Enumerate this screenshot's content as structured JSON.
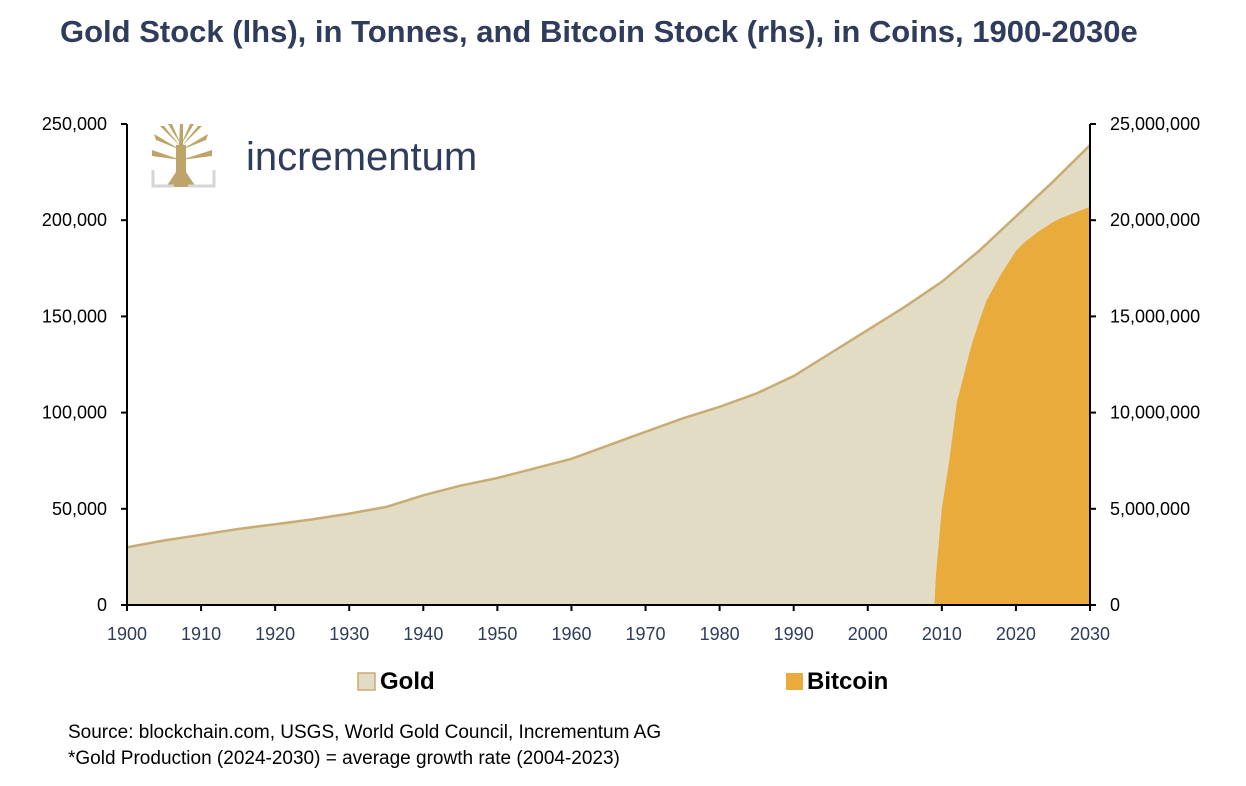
{
  "title": "Gold Stock (lhs), in Tonnes, and Bitcoin Stock (rhs), in Coins, 1900-2030e",
  "logo_text": "incrementum",
  "footer": {
    "source": "Source: blockchain.com, USGS, World Gold Council, Incrementum AG",
    "note": "*Gold Production (2024-2030) = average growth rate (2004-2023)"
  },
  "colors": {
    "gold_fill": "#e3dcc4",
    "gold_line": "#c9ac74",
    "bitcoin": "#e8ab3c",
    "text_dark": "#2f3c5c"
  },
  "chart_data": {
    "type": "area",
    "xlim": [
      1900,
      2030
    ],
    "x_ticks": [
      "1900",
      "1910",
      "1920",
      "1930",
      "1940",
      "1950",
      "1960",
      "1970",
      "1980",
      "1990",
      "2000",
      "2010",
      "2020",
      "2030"
    ],
    "y_left": {
      "ylim": [
        0,
        250000
      ],
      "ticks": [
        "0",
        "50,000",
        "100,000",
        "150,000",
        "200,000",
        "250,000"
      ]
    },
    "y_right": {
      "ylim": [
        0,
        25000000
      ],
      "ticks": [
        "0",
        "5,000,000",
        "10,000,000",
        "15,000,000",
        "20,000,000",
        "25,000,000"
      ]
    },
    "legend": [
      "Gold",
      "Bitcoin"
    ],
    "legend_position": "bottom",
    "series": [
      {
        "name": "Gold",
        "axis": "left",
        "x": [
          1900,
          1905,
          1910,
          1915,
          1920,
          1925,
          1930,
          1935,
          1940,
          1945,
          1950,
          1955,
          1960,
          1965,
          1970,
          1975,
          1980,
          1985,
          1990,
          1995,
          2000,
          2005,
          2010,
          2015,
          2020,
          2025,
          2030
        ],
        "y": [
          30000,
          33500,
          36500,
          39500,
          42000,
          44500,
          47500,
          51000,
          57000,
          62000,
          66000,
          71000,
          76000,
          83000,
          90000,
          97000,
          103000,
          110000,
          119000,
          131000,
          143000,
          155000,
          168000,
          184000,
          202000,
          220000,
          239000
        ]
      },
      {
        "name": "Bitcoin",
        "axis": "right",
        "x": [
          2009,
          2009.2,
          2010,
          2011,
          2012,
          2013,
          2014,
          2015,
          2016,
          2017,
          2018,
          2019,
          2020,
          2021,
          2022,
          2023,
          2024,
          2025,
          2026,
          2027,
          2028,
          2029,
          2030
        ],
        "y": [
          0,
          1500000,
          5000000,
          7500000,
          10500000,
          12000000,
          13500000,
          14700000,
          15800000,
          16500000,
          17200000,
          17800000,
          18400000,
          18800000,
          19100000,
          19400000,
          19650000,
          19900000,
          20100000,
          20250000,
          20400000,
          20550000,
          20700000
        ]
      }
    ]
  }
}
